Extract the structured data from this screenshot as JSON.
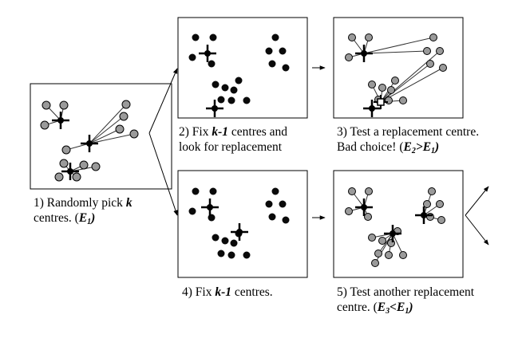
{
  "colors": {
    "ink": "#000000",
    "dot_dark": "#0a0a0a",
    "dot_gray": "#9a9a9a",
    "line": "#333333",
    "background": "#ffffff"
  },
  "steps": [
    {
      "id": "step1",
      "line1_pre": "1) Randomly pick ",
      "line1_k": "k",
      "line2_pre": "centres.  (",
      "line2_E": "E",
      "line2_sub": "1",
      "line2_post": ")"
    },
    {
      "id": "step2",
      "line1_pre": "2) Fix ",
      "line1_k": "k-1",
      "line1_post": " centres and",
      "line2": "look for replacement"
    },
    {
      "id": "step3",
      "line1": "3) Test a replacement centre.",
      "line2_pre": "Bad choice! (",
      "line2_E2": "E",
      "line2_sub2": "2",
      "line2_op": ">",
      "line2_E1": "E",
      "line2_sub1": "1",
      "line2_post": ")"
    },
    {
      "id": "step4",
      "line1_pre": "4) Fix ",
      "line1_k": "k-1",
      "line1_post": " centres."
    },
    {
      "id": "step5",
      "line1": "5) Test another replacement",
      "line2_pre": "centre. (",
      "line2_E3": "E",
      "line2_sub3": "3",
      "line2_op": "<",
      "line2_E1": "E",
      "line2_sub1": "1",
      "line2_post": ")"
    }
  ]
}
